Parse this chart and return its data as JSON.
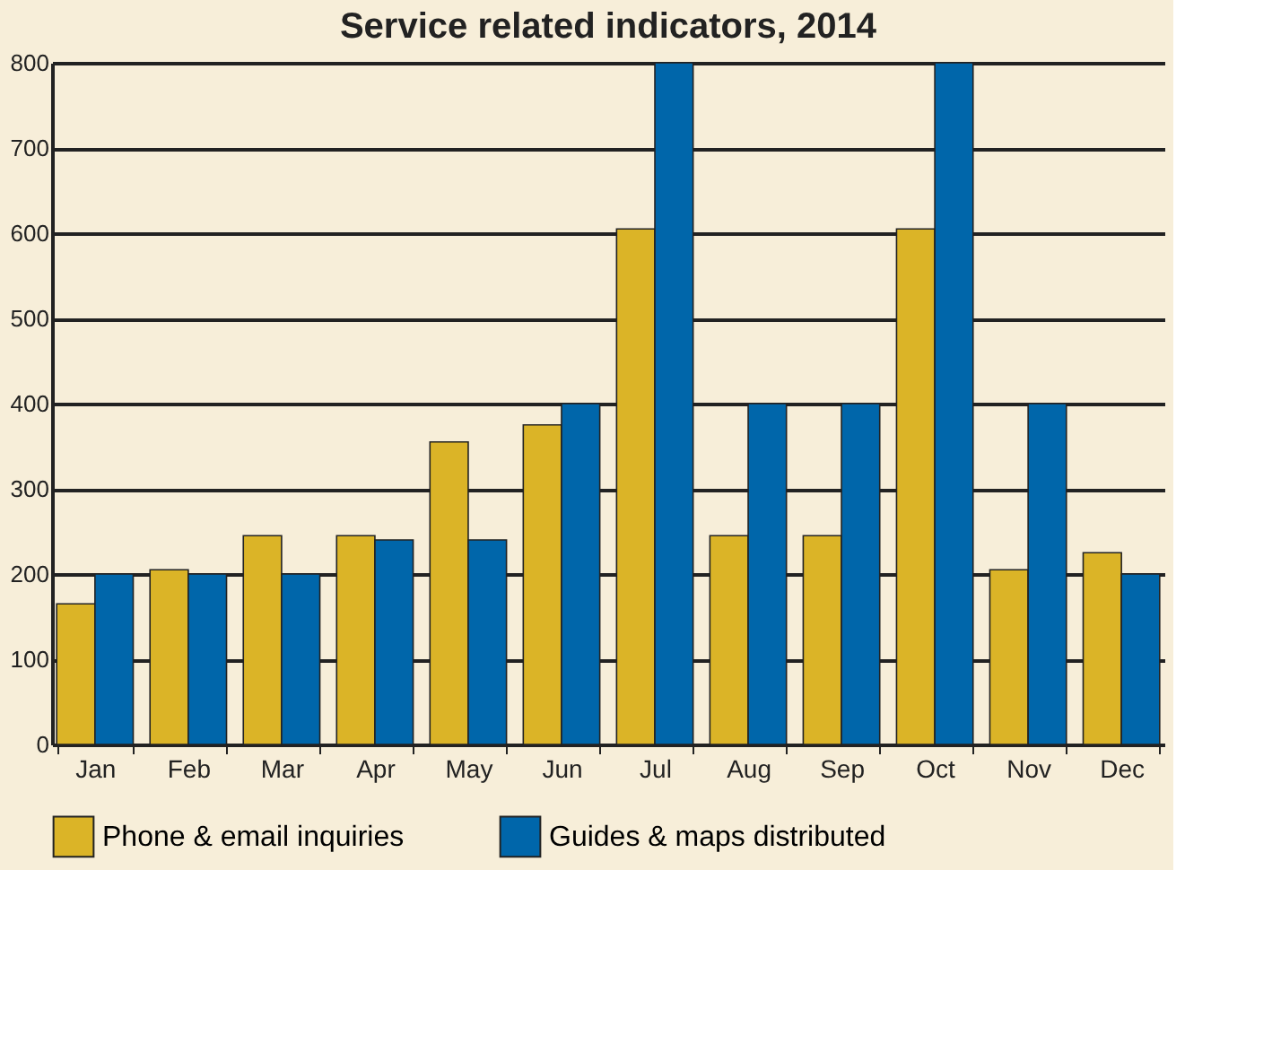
{
  "chart_data": {
    "type": "bar",
    "title": "Service related indicators, 2014",
    "categories": [
      "Jan",
      "Feb",
      "Mar",
      "Apr",
      "May",
      "Jun",
      "Jul",
      "Aug",
      "Sep",
      "Oct",
      "Nov",
      "Dec"
    ],
    "series": [
      {
        "name": "Phone & email inquiries",
        "color": "#dbb427",
        "values": [
          165,
          205,
          245,
          245,
          355,
          375,
          605,
          245,
          245,
          605,
          205,
          225
        ]
      },
      {
        "name": "Guides & maps distributed",
        "color": "#0066aa",
        "values": [
          200,
          200,
          200,
          240,
          240,
          400,
          800,
          400,
          400,
          800,
          400,
          200
        ]
      }
    ],
    "ylim": [
      0,
      800
    ],
    "yticks": [
      0,
      100,
      200,
      300,
      400,
      500,
      600,
      700,
      800
    ],
    "grid": "y",
    "legend": "bottom"
  }
}
